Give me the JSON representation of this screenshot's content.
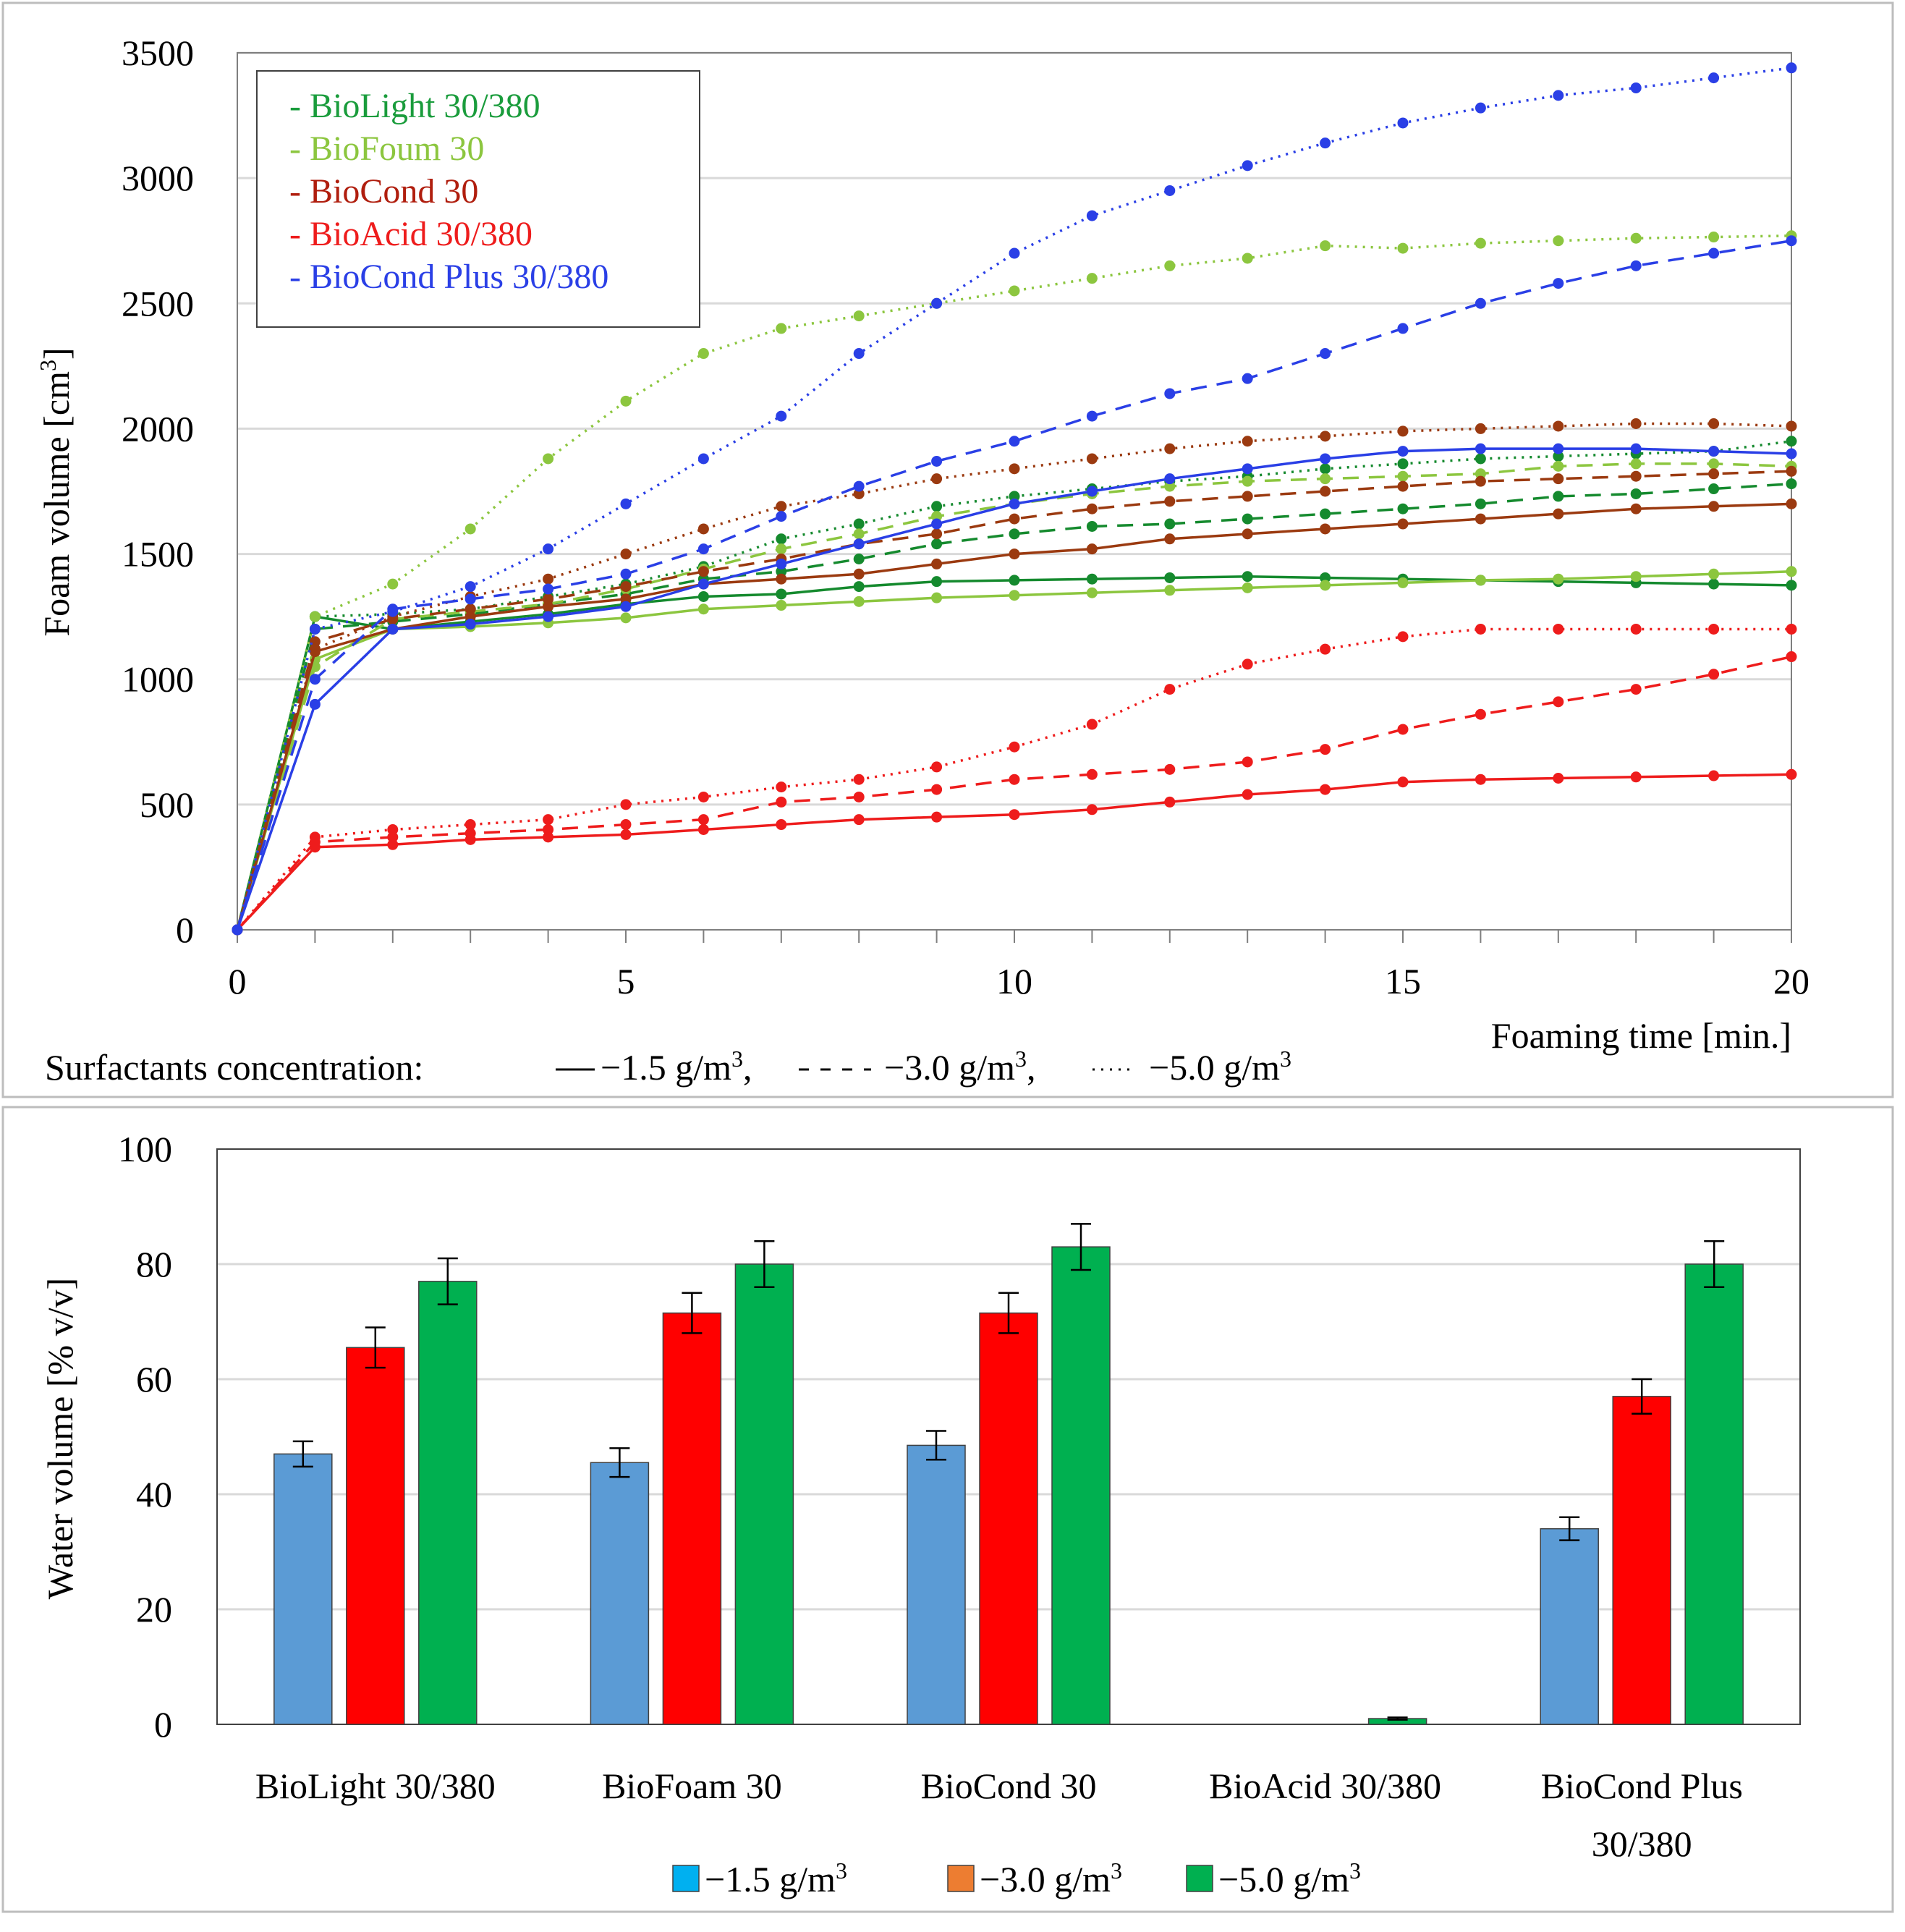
{
  "chart_data": [
    {
      "type": "line",
      "ylabel": "Foam volume [cm",
      "ylabel_sup": "3",
      "ylabel_end": "]",
      "xlabel": "Foaming time [min.]",
      "xlim": [
        0,
        20
      ],
      "ylim": [
        0,
        3500
      ],
      "xticks": [
        0,
        5,
        10,
        15,
        20
      ],
      "yticks": [
        0,
        500,
        1000,
        1500,
        2000,
        2500,
        3000,
        3500
      ],
      "grid": "horizontal",
      "x": [
        0,
        1,
        2,
        3,
        4,
        5,
        6,
        7,
        8,
        9,
        10,
        11,
        12,
        13,
        14,
        15,
        16,
        17,
        18,
        19,
        20
      ],
      "legend": {
        "placement": "top-left",
        "entries": [
          {
            "label": "- BioLight 30/380",
            "color": "#1a9c3c"
          },
          {
            "label": "- BioFoum 30",
            "color": "#8cc63f"
          },
          {
            "label": "- BioCond 30",
            "color": "#b01e0e"
          },
          {
            "label": "- BioAcid 30/380",
            "color": "#ee1c1c"
          },
          {
            "label": "- BioCond Plus 30/380",
            "color": "#2a3fe6"
          }
        ]
      },
      "concentration_note": {
        "prefix": "Surfactants concentration:",
        "solid": "−1.5 g/m",
        "dashed": "−3.0 g/m",
        "dotted": "−5.0 g/m",
        "sup": "3",
        "sep": ","
      },
      "series": [
        {
          "name": "BioLight 30/380 -1.5",
          "color": "#158a2e",
          "style": "solid",
          "values": [
            0,
            1250,
            1200,
            1230,
            1260,
            1300,
            1330,
            1340,
            1370,
            1390,
            1395,
            1400,
            1405,
            1410,
            1405,
            1400,
            1395,
            1390,
            1385,
            1380,
            1375
          ]
        },
        {
          "name": "BioLight 30/380 -3.0",
          "color": "#158a2e",
          "style": "dashed",
          "values": [
            0,
            1200,
            1230,
            1260,
            1300,
            1340,
            1400,
            1430,
            1480,
            1540,
            1580,
            1610,
            1620,
            1640,
            1660,
            1680,
            1700,
            1730,
            1740,
            1760,
            1780
          ]
        },
        {
          "name": "BioLight 30/380 -5.0",
          "color": "#158a2e",
          "style": "dotted",
          "values": [
            0,
            1250,
            1260,
            1280,
            1330,
            1380,
            1450,
            1560,
            1620,
            1690,
            1730,
            1760,
            1790,
            1810,
            1840,
            1860,
            1880,
            1890,
            1900,
            1910,
            1950
          ]
        },
        {
          "name": "BioFoam 30 -1.5",
          "color": "#8cc63f",
          "style": "solid",
          "values": [
            0,
            1080,
            1200,
            1210,
            1225,
            1245,
            1280,
            1295,
            1310,
            1325,
            1335,
            1345,
            1355,
            1365,
            1375,
            1385,
            1395,
            1400,
            1410,
            1420,
            1430
          ]
        },
        {
          "name": "BioFoam 30 -3.0",
          "color": "#8cc63f",
          "style": "dashed",
          "values": [
            0,
            1050,
            1240,
            1270,
            1300,
            1360,
            1440,
            1520,
            1580,
            1650,
            1700,
            1740,
            1770,
            1790,
            1800,
            1810,
            1820,
            1850,
            1860,
            1860,
            1850
          ]
        },
        {
          "name": "BioFoam 30 -5.0",
          "color": "#8cc63f",
          "style": "dotted",
          "values": [
            0,
            1250,
            1380,
            1600,
            1880,
            2110,
            2300,
            2400,
            2450,
            2500,
            2550,
            2600,
            2650,
            2680,
            2730,
            2720,
            2740,
            2750,
            2760,
            2765,
            2770
          ]
        },
        {
          "name": "BioCond 30 -1.5",
          "color": "#9b3a10",
          "style": "solid",
          "values": [
            0,
            1110,
            1200,
            1250,
            1290,
            1320,
            1380,
            1400,
            1420,
            1460,
            1500,
            1520,
            1560,
            1580,
            1600,
            1620,
            1640,
            1660,
            1680,
            1690,
            1700
          ]
        },
        {
          "name": "BioCond 30 -3.0",
          "color": "#9b3a10",
          "style": "dashed",
          "values": [
            0,
            1150,
            1240,
            1280,
            1320,
            1370,
            1430,
            1480,
            1540,
            1580,
            1640,
            1680,
            1710,
            1730,
            1750,
            1770,
            1790,
            1800,
            1810,
            1820,
            1830
          ]
        },
        {
          "name": "BioCond 30 -5.0",
          "color": "#9b3a10",
          "style": "dotted",
          "values": [
            0,
            1120,
            1250,
            1330,
            1400,
            1500,
            1600,
            1690,
            1740,
            1800,
            1840,
            1880,
            1920,
            1950,
            1970,
            1990,
            2000,
            2010,
            2020,
            2020,
            2010
          ]
        },
        {
          "name": "BioAcid 30/380 -1.5",
          "color": "#ee1c1c",
          "style": "solid",
          "values": [
            0,
            330,
            340,
            360,
            370,
            380,
            400,
            420,
            440,
            450,
            460,
            480,
            510,
            540,
            560,
            590,
            600,
            605,
            610,
            615,
            620
          ]
        },
        {
          "name": "BioAcid 30/380 -3.0",
          "color": "#ee1c1c",
          "style": "dashed",
          "values": [
            0,
            350,
            370,
            385,
            400,
            420,
            440,
            510,
            530,
            560,
            600,
            620,
            640,
            670,
            720,
            800,
            860,
            910,
            960,
            1020,
            1090
          ]
        },
        {
          "name": "BioAcid 30/380 -5.0",
          "color": "#ee1c1c",
          "style": "dotted",
          "values": [
            0,
            370,
            400,
            420,
            440,
            500,
            530,
            570,
            600,
            650,
            730,
            820,
            960,
            1060,
            1120,
            1170,
            1200,
            1200,
            1200,
            1200,
            1200
          ]
        },
        {
          "name": "BioCond Plus 30/380 -1.5",
          "color": "#2a3fe6",
          "style": "solid",
          "values": [
            0,
            900,
            1200,
            1220,
            1250,
            1290,
            1380,
            1460,
            1540,
            1620,
            1700,
            1750,
            1800,
            1840,
            1880,
            1910,
            1920,
            1920,
            1920,
            1910,
            1900
          ]
        },
        {
          "name": "BioCond Plus 30/380 -3.0",
          "color": "#2a3fe6",
          "style": "dashed",
          "values": [
            0,
            1000,
            1280,
            1320,
            1360,
            1420,
            1520,
            1650,
            1770,
            1870,
            1950,
            2050,
            2140,
            2200,
            2300,
            2400,
            2500,
            2580,
            2650,
            2700,
            2750
          ]
        },
        {
          "name": "BioCond Plus 30/380 -5.0",
          "color": "#2a3fe6",
          "style": "dotted",
          "values": [
            0,
            1200,
            1270,
            1370,
            1520,
            1700,
            1880,
            2050,
            2300,
            2500,
            2700,
            2850,
            2950,
            3050,
            3140,
            3220,
            3280,
            3330,
            3360,
            3400,
            3440
          ]
        }
      ]
    },
    {
      "type": "bar",
      "ylabel": "Water volume [% v/v]",
      "ylim": [
        0,
        100
      ],
      "yticks": [
        0,
        20,
        40,
        60,
        80,
        100
      ],
      "grid": "horizontal",
      "categories": [
        {
          "line1": "BioLight 30/380",
          "line2": ""
        },
        {
          "line1": "BioFoam 30",
          "line2": ""
        },
        {
          "line1": "BioCond 30",
          "line2": ""
        },
        {
          "line1": "BioAcid 30/380",
          "line2": ""
        },
        {
          "line1": "BioCond Plus",
          "line2": "30/380"
        }
      ],
      "series": [
        {
          "name": "−1.5 g/m",
          "bar_color": "#5b9bd5",
          "legend_color": "#00b0f0",
          "values": [
            47,
            45.5,
            48.5,
            0,
            34
          ],
          "errors": [
            2.2,
            2.5,
            2.5,
            0,
            2
          ]
        },
        {
          "name": "−3.0 g/m",
          "bar_color": "#ff0000",
          "legend_color": "#ed7d31",
          "values": [
            65.5,
            71.5,
            71.5,
            0,
            57
          ],
          "errors": [
            3.5,
            3.5,
            3.5,
            0,
            3
          ]
        },
        {
          "name": "−5.0 g/m",
          "bar_color": "#00b050",
          "legend_color": "#00b050",
          "values": [
            77,
            80,
            83,
            1,
            80
          ],
          "errors": [
            4,
            4,
            4,
            0.2,
            4
          ]
        }
      ],
      "legend_sup": "3",
      "legend": {
        "placement": "bottom-center"
      }
    }
  ]
}
